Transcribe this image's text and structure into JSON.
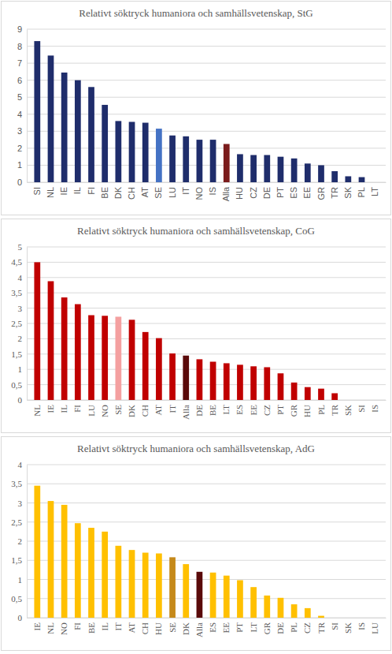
{
  "chart_data": [
    {
      "type": "bar",
      "title": "Relativt söktryck humaniora och samhällsvetenskap, StG",
      "categories": [
        "SI",
        "NL",
        "IE",
        "IL",
        "FI",
        "BE",
        "DK",
        "CH",
        "AT",
        "SE",
        "LU",
        "IT",
        "NO",
        "IS",
        "Alla",
        "HU",
        "CZ",
        "DE",
        "PT",
        "ES",
        "EE",
        "GR",
        "TR",
        "SK",
        "PL",
        "LT"
      ],
      "values": [
        8.3,
        7.45,
        6.45,
        6.0,
        5.6,
        4.55,
        3.6,
        3.55,
        3.5,
        3.15,
        2.75,
        2.7,
        2.5,
        2.5,
        2.25,
        1.65,
        1.6,
        1.6,
        1.5,
        1.4,
        1.1,
        1.0,
        0.65,
        0.35,
        0.3,
        0
      ],
      "colors": [
        "#1f2d6b",
        "#1f2d6b",
        "#1f2d6b",
        "#1f2d6b",
        "#1f2d6b",
        "#1f2d6b",
        "#1f2d6b",
        "#1f2d6b",
        "#1f2d6b",
        "#4472c4",
        "#1f2d6b",
        "#1f2d6b",
        "#1f2d6b",
        "#1f2d6b",
        "#7b1c1c",
        "#1f2d6b",
        "#1f2d6b",
        "#1f2d6b",
        "#1f2d6b",
        "#1f2d6b",
        "#1f2d6b",
        "#1f2d6b",
        "#1f2d6b",
        "#1f2d6b",
        "#1f2d6b",
        "#1f2d6b"
      ],
      "ylim": [
        0,
        9
      ],
      "yticks": [
        0,
        1,
        2,
        3,
        4,
        5,
        6,
        7,
        8,
        9
      ],
      "grid": true
    },
    {
      "type": "bar",
      "title": "Relativt söktryck humaniora och samhällsvetenskap, CoG",
      "categories": [
        "NL",
        "IE",
        "IL",
        "FI",
        "LU",
        "NO",
        "SE",
        "DK",
        "CH",
        "AT",
        "IT",
        "Alla",
        "DE",
        "BE",
        "LT",
        "ES",
        "EE",
        "CZ",
        "PT",
        "GR",
        "HU",
        "PL",
        "TR",
        "SK",
        "SI",
        "IS"
      ],
      "values": [
        4.5,
        3.88,
        3.35,
        3.13,
        2.77,
        2.75,
        2.72,
        2.62,
        2.22,
        2.02,
        1.52,
        1.45,
        1.33,
        1.25,
        1.2,
        1.15,
        1.1,
        1.07,
        0.87,
        0.57,
        0.42,
        0.37,
        0.22,
        0,
        0,
        0
      ],
      "colors": [
        "#c00000",
        "#c00000",
        "#c00000",
        "#c00000",
        "#c00000",
        "#c00000",
        "#f4a0a0",
        "#c00000",
        "#c00000",
        "#c00000",
        "#c00000",
        "#5a0a0a",
        "#c00000",
        "#c00000",
        "#c00000",
        "#c00000",
        "#c00000",
        "#c00000",
        "#c00000",
        "#c00000",
        "#c00000",
        "#c00000",
        "#c00000",
        "#c00000",
        "#c00000",
        "#c00000"
      ],
      "ylim": [
        0,
        5
      ],
      "yticks": [
        0,
        {
          "value": 0.5,
          "label": "0,5"
        },
        1,
        {
          "value": 1.5,
          "label": "1,5"
        },
        2,
        {
          "value": 2.5,
          "label": "2,5"
        },
        3,
        {
          "value": 3.5,
          "label": "3,5"
        },
        4,
        {
          "value": 4.5,
          "label": "4,5"
        },
        5
      ],
      "grid": true
    },
    {
      "type": "bar",
      "title": "Relativt söktryck humaniora och samhällsvetenskap, AdG",
      "categories": [
        "IE",
        "NL",
        "NO",
        "FI",
        "BE",
        "IL",
        "IT",
        "AT",
        "CH",
        "HU",
        "SE",
        "DK",
        "Alla",
        "ES",
        "EE",
        "PT",
        "LT",
        "GR",
        "DE",
        "PL",
        "CZ",
        "TR",
        "SI",
        "SK",
        "IS",
        "LU"
      ],
      "values": [
        3.45,
        3.05,
        2.95,
        2.47,
        2.35,
        2.25,
        1.88,
        1.77,
        1.7,
        1.68,
        1.58,
        1.4,
        1.2,
        1.18,
        1.1,
        0.98,
        0.8,
        0.58,
        0.52,
        0.35,
        0.25,
        0.05,
        0,
        0,
        0,
        0
      ],
      "colors": [
        "#ffc000",
        "#ffc000",
        "#ffc000",
        "#ffc000",
        "#ffc000",
        "#ffc000",
        "#ffc000",
        "#ffc000",
        "#ffc000",
        "#ffc000",
        "#c5891a",
        "#ffc000",
        "#5a0a0a",
        "#ffc000",
        "#ffc000",
        "#ffc000",
        "#ffc000",
        "#ffc000",
        "#ffc000",
        "#ffc000",
        "#ffc000",
        "#ffc000",
        "#ffc000",
        "#ffc000",
        "#ffc000",
        "#ffc000"
      ],
      "ylim": [
        0,
        4
      ],
      "yticks": [
        0,
        {
          "value": 0.5,
          "label": "0,5"
        },
        1,
        {
          "value": 1.5,
          "label": "1,5"
        },
        2,
        {
          "value": 2.5,
          "label": "2,5"
        },
        3,
        {
          "value": 3.5,
          "label": "3,5"
        },
        4
      ],
      "grid": true
    }
  ]
}
